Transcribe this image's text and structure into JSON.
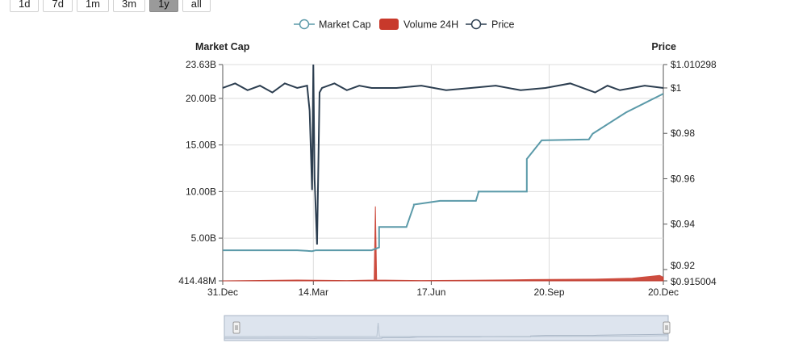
{
  "range_buttons": [
    "1d",
    "7d",
    "1m",
    "3m",
    "1y",
    "all"
  ],
  "range_selected": "1y",
  "colors": {
    "market_cap": "#5b9aa9",
    "volume": "#c8392b",
    "price": "#2c3e50",
    "grid": "#dddddd",
    "navigator_fill": "#dde4ee",
    "navigator_line": "#a9b6c6"
  },
  "chart_data": {
    "type": "line",
    "legend": {
      "placement": "top-center",
      "items": [
        "Market Cap",
        "Volume 24H",
        "Price"
      ]
    },
    "left_axis": {
      "title": "Market Cap",
      "ticks": [
        "414.48M",
        "5.00B",
        "10.00B",
        "15.00B",
        "20.00B",
        "23.63B"
      ],
      "tick_values": [
        0.41448,
        5,
        10,
        15,
        20,
        23.63
      ],
      "ylim": [
        0.41448,
        23.63
      ]
    },
    "right_axis": {
      "title": "Price",
      "ticks": [
        "$0.915004",
        "$0.92",
        "$0.94",
        "$0.96",
        "$0.98",
        "$1",
        "$1.010298"
      ],
      "tick_values": [
        0.915004,
        0.92,
        0.94,
        0.96,
        0.98,
        1.0,
        1.010298
      ],
      "ylim": [
        0.915004,
        1.010298
      ]
    },
    "x_axis": {
      "ticks": [
        "31.Dec",
        "14.Mar",
        "17.Jun",
        "20.Sep",
        "20.Dec"
      ],
      "tick_days": [
        0,
        73,
        168,
        263,
        355
      ],
      "xlim": [
        0,
        355
      ]
    },
    "grid": true,
    "series": [
      {
        "name": "Market Cap",
        "axis": "left",
        "x": [
          0,
          60,
          72,
          75,
          120,
          126,
          126,
          148,
          154,
          154,
          175,
          204,
          206,
          206,
          245,
          245,
          257,
          295,
          298,
          325,
          340,
          355
        ],
        "values": [
          3.7,
          3.7,
          3.6,
          3.7,
          3.7,
          4.0,
          6.2,
          6.2,
          8.5,
          8.6,
          9.0,
          9.0,
          9.9,
          10.0,
          10.0,
          13.5,
          15.5,
          15.6,
          16.2,
          18.5,
          19.5,
          20.5
        ]
      },
      {
        "name": "Volume 24H",
        "axis": "left",
        "x": [
          0,
          60,
          100,
          122,
          123,
          124,
          160,
          200,
          250,
          300,
          330,
          345,
          352,
          355
        ],
        "values": [
          0.42,
          0.5,
          0.45,
          0.5,
          8.4,
          0.5,
          0.45,
          0.48,
          0.55,
          0.6,
          0.7,
          0.9,
          1.0,
          0.8
        ]
      },
      {
        "name": "Price",
        "axis": "right",
        "x": [
          0,
          10,
          20,
          30,
          40,
          50,
          60,
          68,
          70,
          72,
          73,
          74,
          76,
          78,
          80,
          90,
          100,
          110,
          120,
          140,
          160,
          180,
          200,
          220,
          240,
          260,
          280,
          300,
          310,
          320,
          330,
          340,
          355
        ],
        "values": [
          1.0,
          1.002,
          0.999,
          1.001,
          0.998,
          1.002,
          1.0,
          1.001,
          0.99,
          0.955,
          1.010298,
          0.96,
          0.931,
          0.998,
          1.0,
          1.002,
          0.999,
          1.001,
          1.0,
          1.0,
          1.001,
          0.999,
          1.0,
          1.001,
          0.999,
          1.0,
          1.002,
          0.998,
          1.001,
          0.999,
          1.0,
          1.001,
          1.0
        ]
      }
    ]
  }
}
